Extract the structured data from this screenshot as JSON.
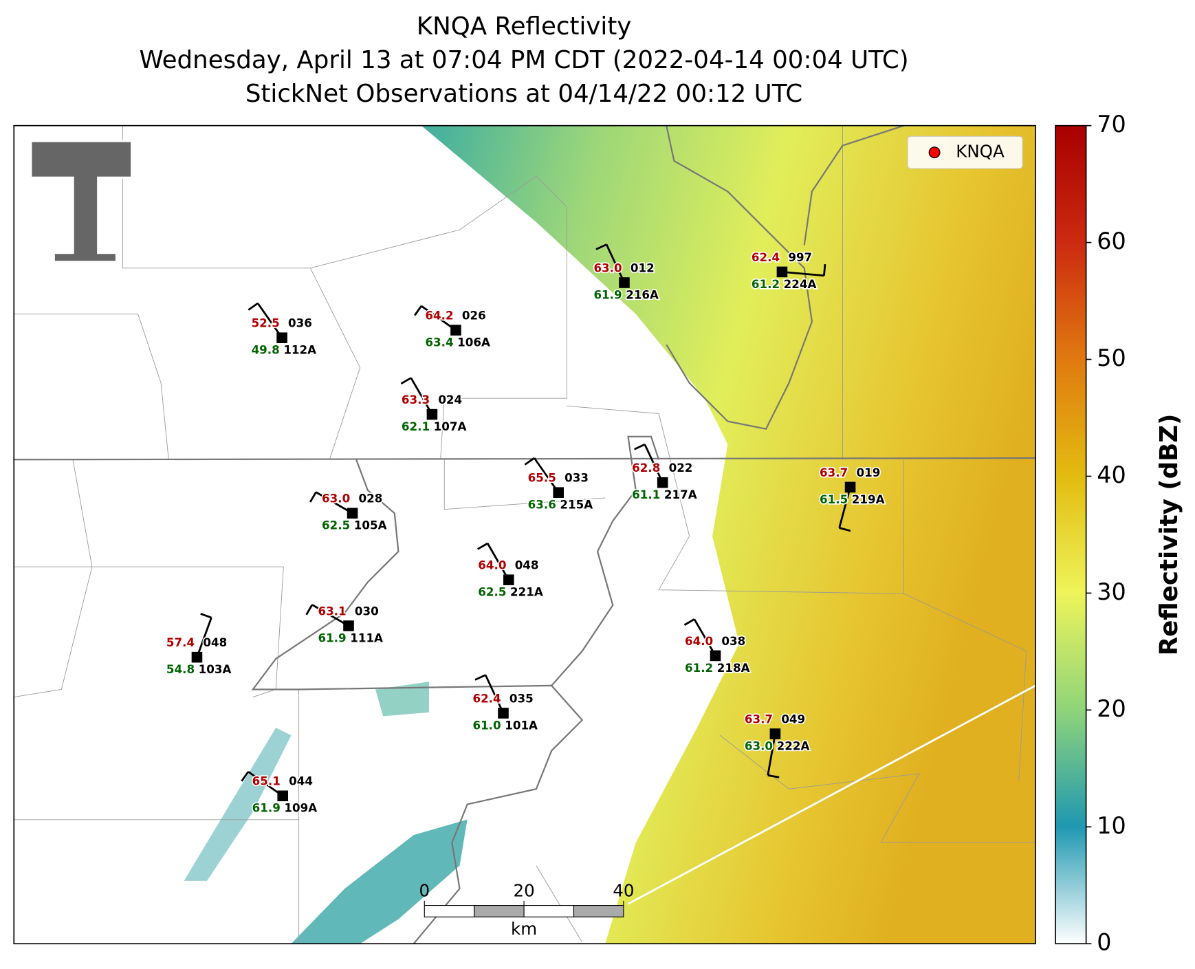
{
  "title": [
    "KNQA Reflectivity",
    "Wednesday, April 13 at 07:04 PM CDT (2022-04-14 00:04 UTC)",
    "StickNet Observations at 04/14/22 00:12 UTC"
  ],
  "legend": {
    "label": "KNQA",
    "color": "#ff0000"
  },
  "colorbar": {
    "label": "Reflectivity (dBZ)",
    "lim": [
      0,
      70
    ],
    "ticks": [
      0,
      10,
      20,
      30,
      40,
      50,
      60,
      70
    ]
  },
  "scale_bar": {
    "ticks": [
      0,
      20,
      40
    ],
    "unit": "km"
  },
  "stations": [
    {
      "id": "112A",
      "temperature": "52.5",
      "dewpoint": "49.8",
      "pressure": "036"
    },
    {
      "id": "106A",
      "temperature": "64.2",
      "dewpoint": "63.4",
      "pressure": "026"
    },
    {
      "id": "216A",
      "temperature": "63.0",
      "dewpoint": "61.9",
      "pressure": "012"
    },
    {
      "id": "224A",
      "temperature": "62.4",
      "dewpoint": "61.2",
      "pressure": "997"
    },
    {
      "id": "107A",
      "temperature": "63.3",
      "dewpoint": "62.1",
      "pressure": "024"
    },
    {
      "id": "215A",
      "temperature": "65.5",
      "dewpoint": "63.6",
      "pressure": "033"
    },
    {
      "id": "217A",
      "temperature": "62.8",
      "dewpoint": "61.1",
      "pressure": "022"
    },
    {
      "id": "219A",
      "temperature": "63.7",
      "dewpoint": "61.5",
      "pressure": "019"
    },
    {
      "id": "105A",
      "temperature": "63.0",
      "dewpoint": "62.5",
      "pressure": "028"
    },
    {
      "id": "221A",
      "temperature": "64.0",
      "dewpoint": "62.5",
      "pressure": "048"
    },
    {
      "id": "111A",
      "temperature": "63.1",
      "dewpoint": "61.9",
      "pressure": "030"
    },
    {
      "id": "103A",
      "temperature": "57.4",
      "dewpoint": "54.8",
      "pressure": "048"
    },
    {
      "id": "218A",
      "temperature": "64.0",
      "dewpoint": "61.2",
      "pressure": "038"
    },
    {
      "id": "101A",
      "temperature": "62.4",
      "dewpoint": "61.0",
      "pressure": "035"
    },
    {
      "id": "222A",
      "temperature": "63.7",
      "dewpoint": "63.0",
      "pressure": "049"
    },
    {
      "id": "109A",
      "temperature": "65.1",
      "dewpoint": "61.9",
      "pressure": "044"
    }
  ]
}
